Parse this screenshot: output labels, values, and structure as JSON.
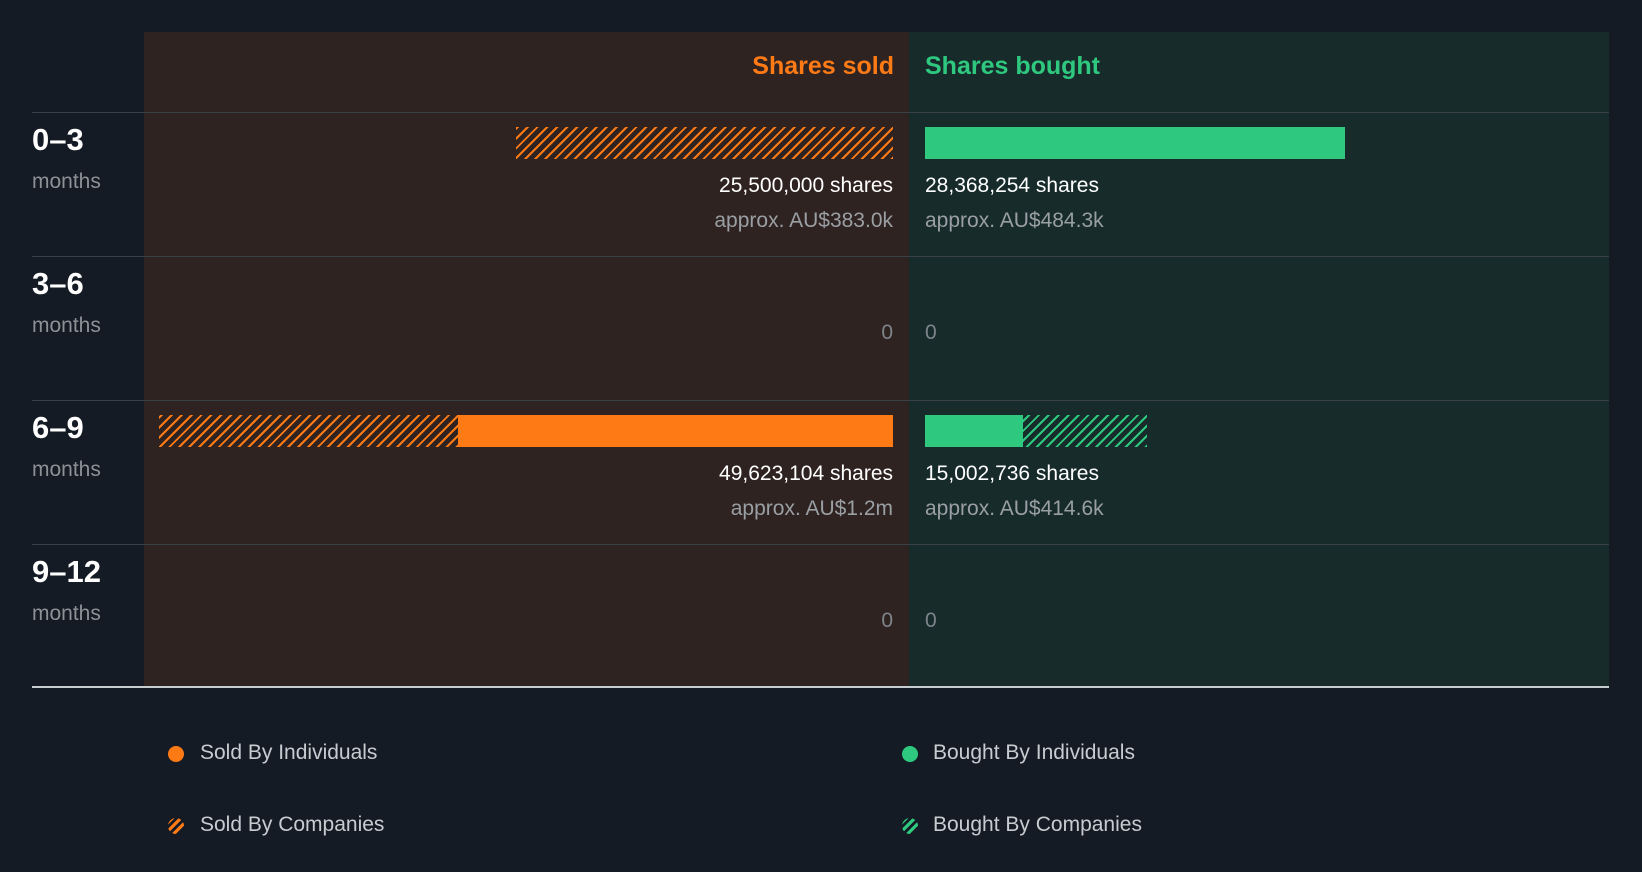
{
  "header": {
    "sold": "Shares sold",
    "bought": "Shares bought"
  },
  "colors": {
    "sold": "#fe7a15",
    "bought": "#2ec97f"
  },
  "chart_data": {
    "type": "bar",
    "orientation": "horizontal-diverging",
    "scale_max_shares": 49623104,
    "categories": [
      {
        "period": "0–3",
        "unit": "months",
        "sold": {
          "shares_label": "25,500,000 shares",
          "approx": "approx. AU$383.0k",
          "individuals": 0,
          "companies": 25500000
        },
        "bought": {
          "shares_label": "28,368,254 shares",
          "approx": "approx. AU$484.3k",
          "individuals": 28368254,
          "companies": 0
        }
      },
      {
        "period": "3–6",
        "unit": "months",
        "sold": {
          "zero_label": "0",
          "individuals": 0,
          "companies": 0
        },
        "bought": {
          "zero_label": "0",
          "individuals": 0,
          "companies": 0
        }
      },
      {
        "period": "6–9",
        "unit": "months",
        "sold": {
          "shares_label": "49,623,104 shares",
          "approx": "approx. AU$1.2m",
          "individuals": 29400000,
          "companies": 20223104
        },
        "bought": {
          "shares_label": "15,002,736 shares",
          "approx": "approx. AU$414.6k",
          "individuals": 6600000,
          "companies": 8402736
        }
      },
      {
        "period": "9–12",
        "unit": "months",
        "sold": {
          "zero_label": "0",
          "individuals": 0,
          "companies": 0
        },
        "bought": {
          "zero_label": "0",
          "individuals": 0,
          "companies": 0
        }
      }
    ]
  },
  "legend": {
    "sold_individuals": "Sold By Individuals",
    "sold_companies": "Sold By Companies",
    "bought_individuals": "Bought By Individuals",
    "bought_companies": "Bought By Companies"
  }
}
